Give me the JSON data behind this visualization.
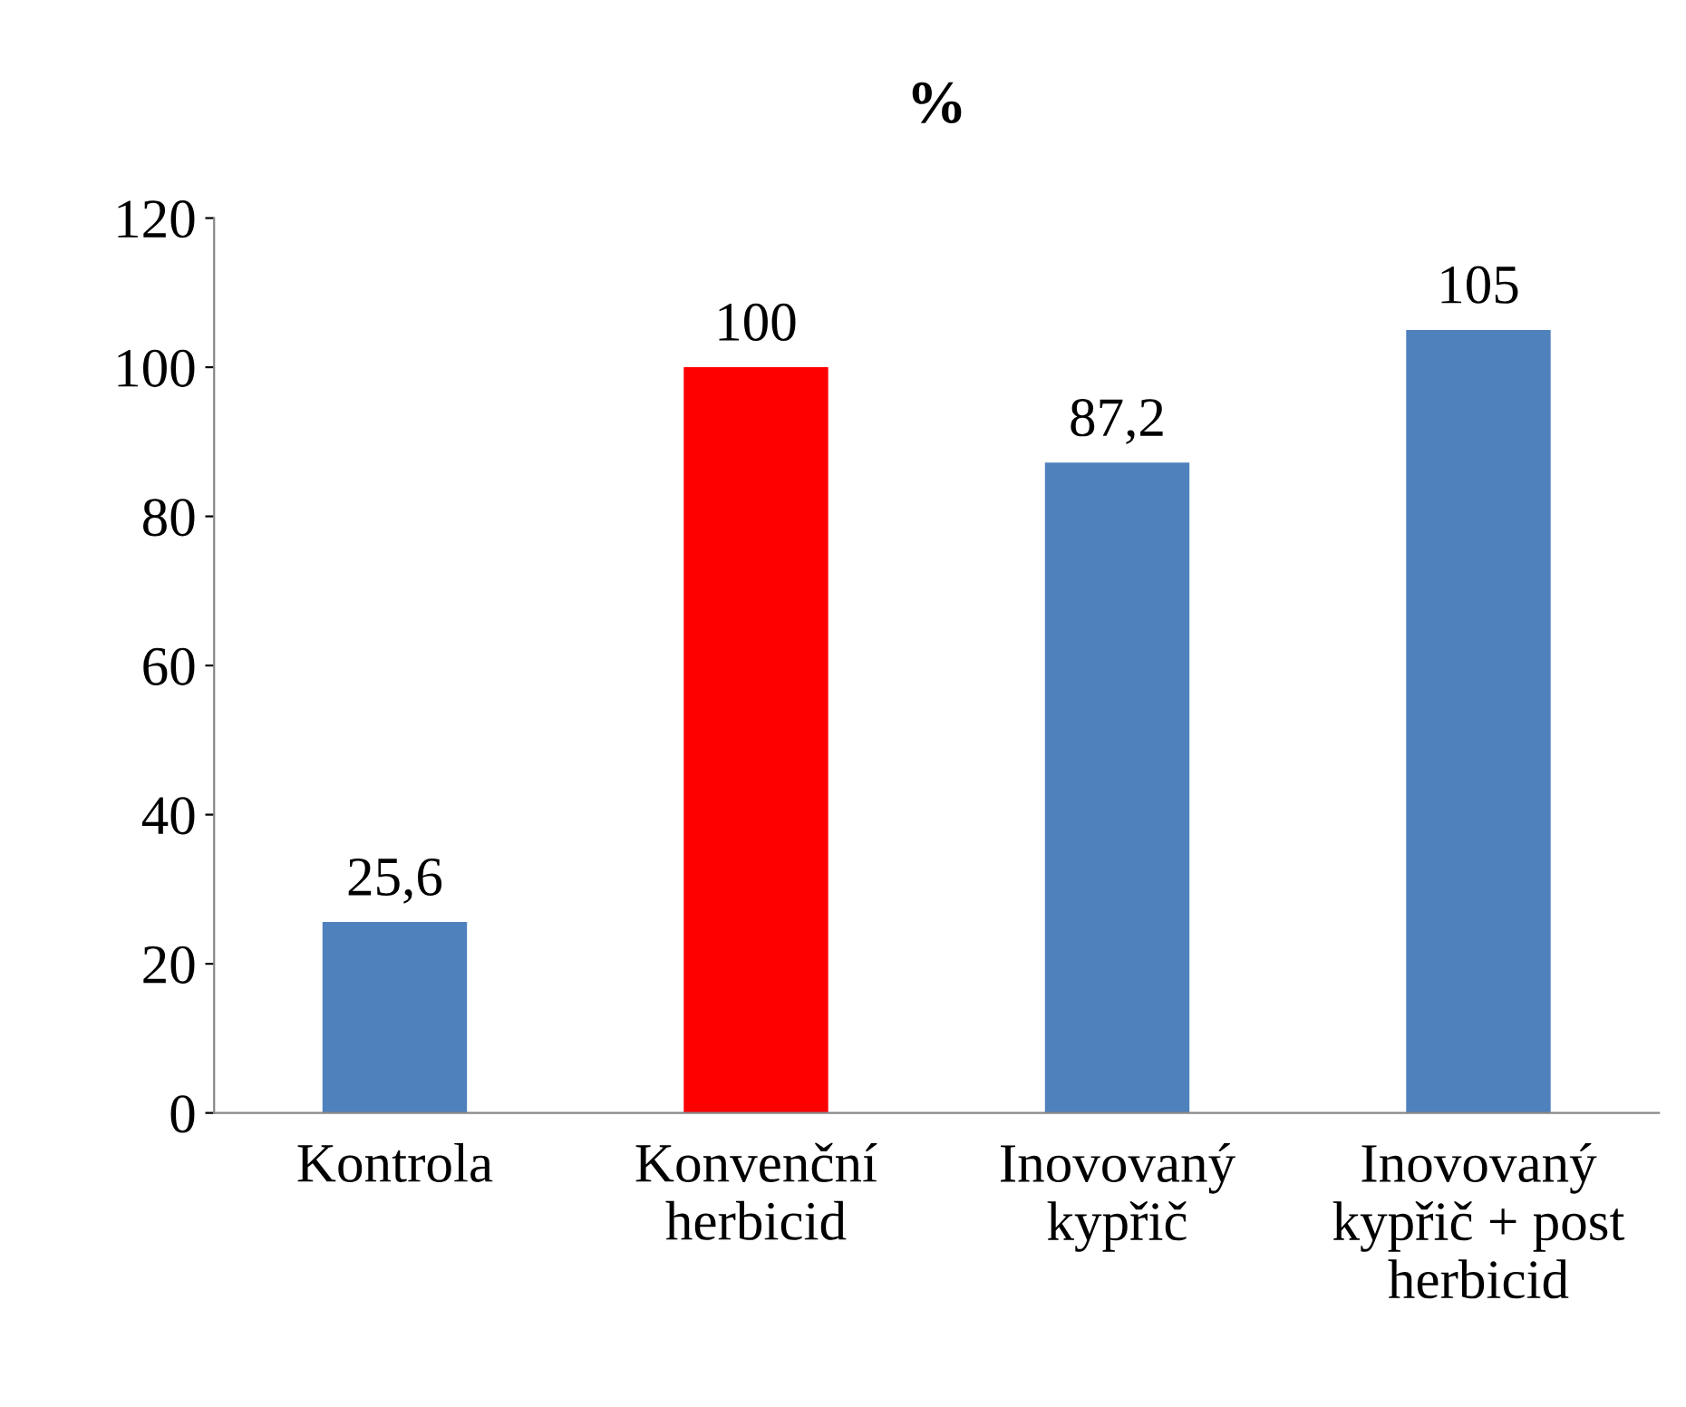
{
  "chart_data": {
    "type": "bar",
    "title": "%",
    "categories": [
      "Kontrola",
      "Konvenční\nherbicid",
      "Inovovaný\nkypřič",
      "Inovovaný\nkypřič + post\nherbicid"
    ],
    "values": [
      25.6,
      100,
      87.2,
      105
    ],
    "colors": [
      "#4f81bd",
      "#ff0000",
      "#4f81bd",
      "#4f81bd"
    ],
    "value_labels": [
      "25,6",
      "100",
      "87,2",
      "105"
    ],
    "ylim": [
      0,
      120
    ],
    "yticks": [
      0,
      20,
      40,
      60,
      80,
      100,
      120
    ],
    "grid": false,
    "legend": false
  }
}
